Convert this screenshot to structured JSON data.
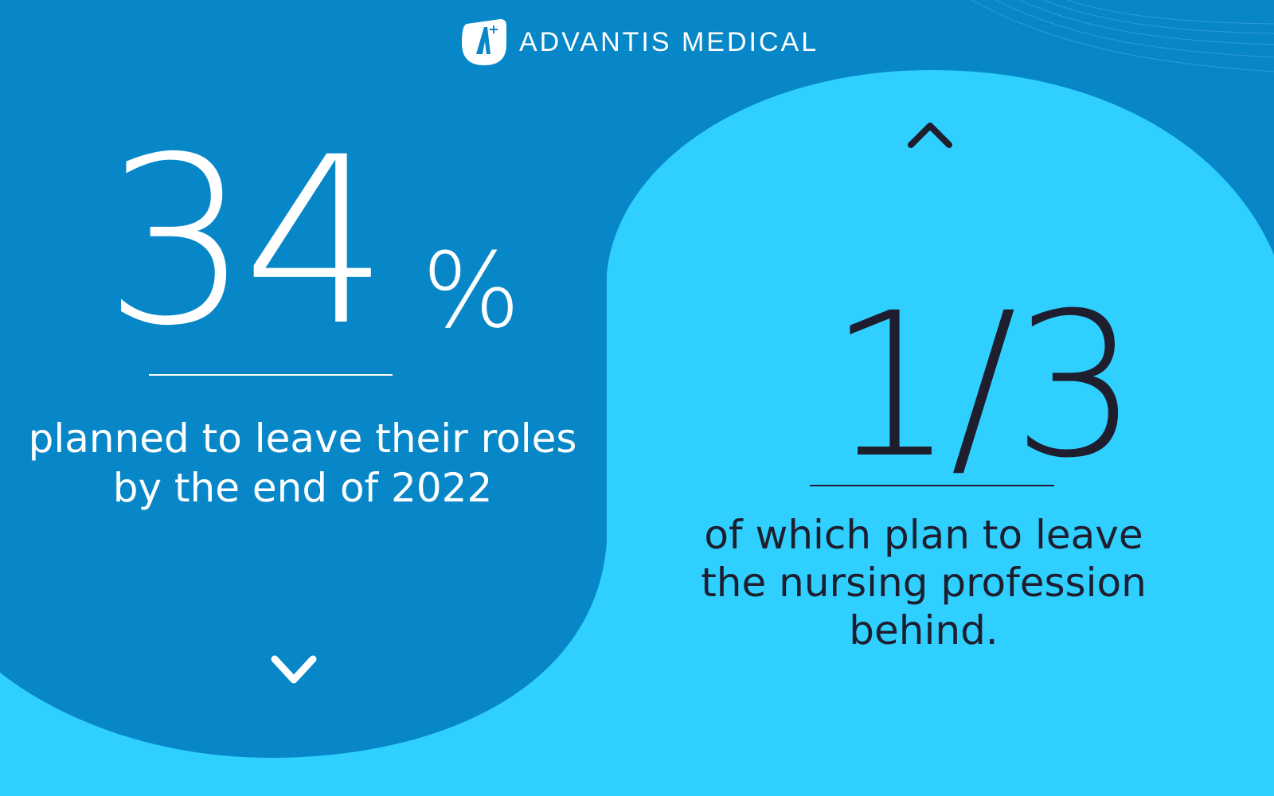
{
  "brand": {
    "name": "ADVANTIS MEDICAL",
    "logo_letter": "A"
  },
  "colors": {
    "dark_blue": "#0787c8",
    "light_blue": "#2fd0ff",
    "text_dark": "#1e1e2e",
    "white": "#ffffff"
  },
  "left_stat": {
    "value": "34",
    "unit": "%",
    "caption": "planned to leave their roles by the end of 2022",
    "icon": "chevron-down-icon"
  },
  "right_stat": {
    "value": "1/3",
    "caption": "of which plan to leave the nursing profession behind.",
    "icon": "chevron-up-icon"
  }
}
